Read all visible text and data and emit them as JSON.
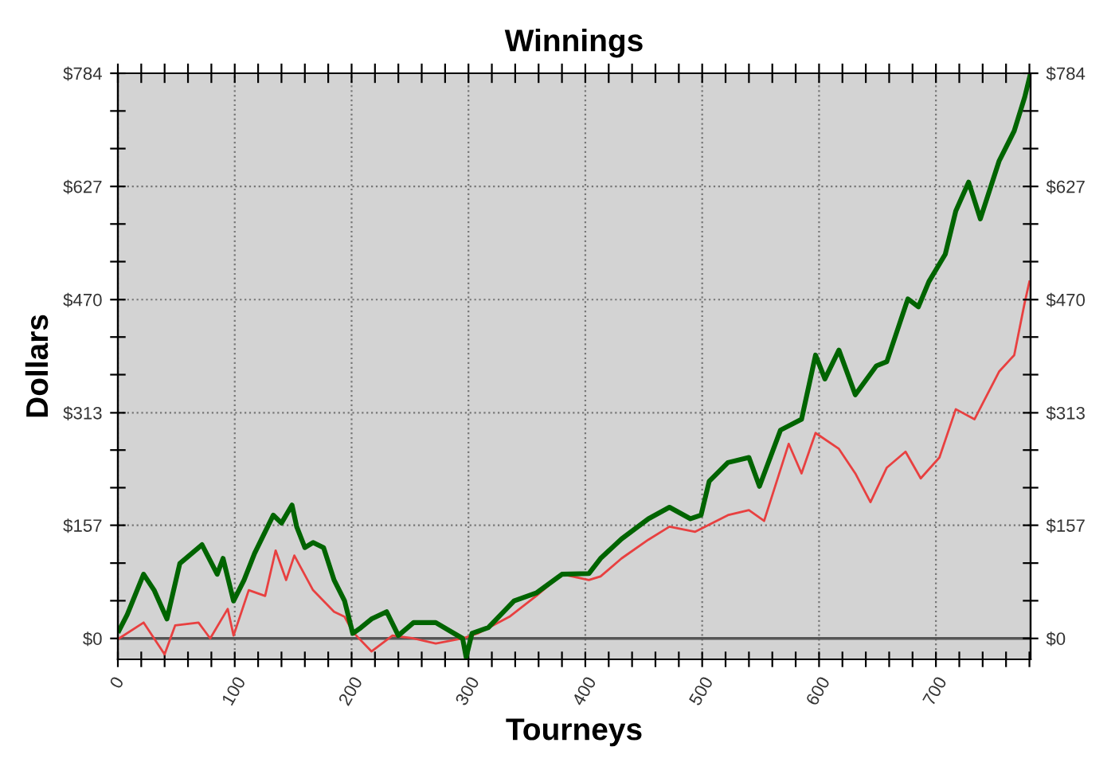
{
  "chart_data": {
    "type": "line",
    "title": "Winnings",
    "xlabel": "Tourneys",
    "ylabel": "Dollars",
    "series": [
      {
        "color": "#006400",
        "x": [
          1,
          8,
          22,
          31,
          42,
          53,
          72,
          85,
          90,
          99,
          108,
          117,
          133,
          140,
          149,
          153,
          160,
          167,
          176,
          185,
          194,
          201,
          208,
          217,
          230,
          240,
          253,
          272,
          295,
          298,
          303,
          317,
          339,
          358,
          380,
          403,
          413,
          431,
          454,
          472,
          490,
          499,
          506,
          522,
          540,
          549,
          567,
          585,
          597,
          605,
          617,
          631,
          649,
          658,
          676,
          685,
          694,
          708,
          717,
          728,
          738,
          754,
          767,
          776,
          781
        ],
        "values": [
          11,
          33,
          89,
          67,
          27,
          104,
          130,
          89,
          111,
          52,
          81,
          118,
          171,
          160,
          185,
          155,
          126,
          133,
          126,
          81,
          52,
          7,
          15,
          27,
          37,
          4,
          22,
          22,
          0,
          -26,
          7,
          15,
          52,
          63,
          89,
          90,
          111,
          138,
          166,
          182,
          166,
          171,
          218,
          244,
          251,
          211,
          289,
          304,
          393,
          360,
          400,
          338,
          378,
          384,
          471,
          460,
          495,
          533,
          593,
          633,
          582,
          662,
          704,
          751,
          784
        ]
      },
      {
        "color": "#e84040",
        "x": [
          1,
          22,
          40,
          49,
          69,
          79,
          94,
          99,
          112,
          126,
          135,
          144,
          151,
          167,
          185,
          194,
          201,
          217,
          235,
          253,
          272,
          295,
          308,
          335,
          358,
          380,
          403,
          413,
          431,
          454,
          472,
          494,
          522,
          540,
          553,
          574,
          585,
          597,
          617,
          631,
          644,
          658,
          674,
          687,
          703,
          717,
          733,
          754,
          767,
          776,
          780
        ],
        "values": [
          0,
          22,
          -22,
          18,
          22,
          0,
          41,
          4,
          67,
          59,
          122,
          81,
          115,
          67,
          37,
          30,
          9,
          -18,
          4,
          0,
          -7,
          0,
          7,
          30,
          59,
          89,
          81,
          86,
          111,
          137,
          155,
          148,
          171,
          178,
          163,
          270,
          229,
          285,
          263,
          229,
          189,
          237,
          259,
          222,
          251,
          318,
          304,
          370,
          393,
          466,
          495
        ]
      }
    ],
    "xlim": [
      0,
      781
    ],
    "xticks": [
      0,
      {
        "value": 20,
        "label": null
      },
      {
        "value": 40,
        "label": null
      },
      {
        "value": 60,
        "label": null
      },
      {
        "value": 80,
        "label": null
      },
      100,
      {
        "value": 120,
        "label": null
      },
      {
        "value": 140,
        "label": null
      },
      {
        "value": 160,
        "label": null
      },
      {
        "value": 180,
        "label": null
      },
      200,
      {
        "value": 220,
        "label": null
      },
      {
        "value": 240,
        "label": null
      },
      {
        "value": 260,
        "label": null
      },
      {
        "value": 280,
        "label": null
      },
      300,
      {
        "value": 320,
        "label": null
      },
      {
        "value": 340,
        "label": null
      },
      {
        "value": 360,
        "label": null
      },
      {
        "value": 380,
        "label": null
      },
      400,
      {
        "value": 420,
        "label": null
      },
      {
        "value": 440,
        "label": null
      },
      {
        "value": 460,
        "label": null
      },
      {
        "value": 480,
        "label": null
      },
      500,
      {
        "value": 520,
        "label": null
      },
      {
        "value": 540,
        "label": null
      },
      {
        "value": 560,
        "label": null
      },
      {
        "value": 580,
        "label": null
      },
      600,
      {
        "value": 620,
        "label": null
      },
      {
        "value": 640,
        "label": null
      },
      {
        "value": 660,
        "label": null
      },
      {
        "value": 680,
        "label": null
      },
      700,
      {
        "value": 720,
        "label": null
      },
      {
        "value": 740,
        "label": null
      },
      {
        "value": 760,
        "label": null
      },
      {
        "value": 780,
        "label": null
      }
    ],
    "ylim": [
      -29,
      784
    ],
    "yticks": [
      {
        "value": 0,
        "label": "$0"
      },
      {
        "value": 52.3,
        "label": null
      },
      {
        "value": 104.5,
        "label": null
      },
      {
        "value": 157,
        "label": "$157"
      },
      {
        "value": 209.1,
        "label": null
      },
      {
        "value": 261.3,
        "label": null
      },
      {
        "value": 313,
        "label": "$313"
      },
      {
        "value": 365.9,
        "label": null
      },
      {
        "value": 418.1,
        "label": null
      },
      {
        "value": 470,
        "label": "$470"
      },
      {
        "value": 522.7,
        "label": null
      },
      {
        "value": 574.9,
        "label": null
      },
      {
        "value": 627,
        "label": "$627"
      },
      {
        "value": 679.5,
        "label": null
      },
      {
        "value": 731.7,
        "label": null
      },
      {
        "value": 784,
        "label": "$784"
      }
    ],
    "y2lim": [
      -29,
      784
    ],
    "y2ticks": [
      {
        "value": 0,
        "label": "$0"
      },
      {
        "value": 52.3,
        "label": null
      },
      {
        "value": 104.5,
        "label": null
      },
      {
        "value": 157,
        "label": "$157"
      },
      {
        "value": 209.1,
        "label": null
      },
      {
        "value": 261.3,
        "label": null
      },
      {
        "value": 313,
        "label": "$313"
      },
      {
        "value": 365.9,
        "label": null
      },
      {
        "value": 418.1,
        "label": null
      },
      {
        "value": 470,
        "label": "$470"
      },
      {
        "value": 522.7,
        "label": null
      },
      {
        "value": 574.9,
        "label": null
      },
      {
        "value": 627,
        "label": "$627"
      },
      {
        "value": 679.5,
        "label": null
      },
      {
        "value": 731.7,
        "label": null
      },
      {
        "value": 784,
        "label": "$784"
      }
    ],
    "ref_lines": [
      {
        "axis": "y",
        "value": 0,
        "color": "#555555"
      }
    ],
    "grid": true,
    "legend": false
  }
}
